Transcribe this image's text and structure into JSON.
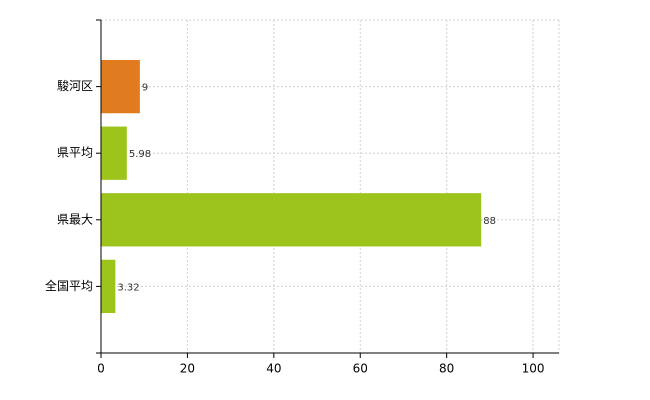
{
  "chart_data": {
    "type": "hbar",
    "categories": [
      "駿河区",
      "県平均",
      "県最大",
      "全国平均"
    ],
    "values": [
      9,
      5.98,
      88,
      3.32
    ],
    "colors": [
      "#e07b20",
      "#9dc41a",
      "#9dc41a",
      "#9dc41a"
    ],
    "xlim": [
      0,
      106
    ],
    "xticks": [
      0,
      20,
      40,
      60,
      80,
      100
    ],
    "grid": true
  }
}
